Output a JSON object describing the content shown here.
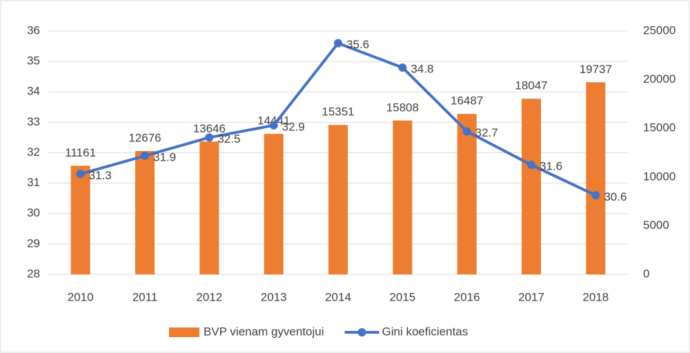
{
  "chart_data": {
    "type": "bar",
    "categories": [
      "2010",
      "2011",
      "2012",
      "2013",
      "2014",
      "2015",
      "2016",
      "2017",
      "2018"
    ],
    "series": [
      {
        "name": "BVP vienam gyventojui",
        "type": "bar",
        "axis": "y2",
        "color": "#ed7d31",
        "values": [
          11161,
          12676,
          13646,
          14441,
          15351,
          15808,
          16487,
          18047,
          19737
        ]
      },
      {
        "name": "Gini koeficientas",
        "type": "line",
        "color": "#4472c4",
        "values": [
          31.3,
          31.9,
          32.5,
          32.9,
          35.6,
          34.8,
          32.7,
          31.6,
          30.6
        ]
      }
    ],
    "ylim": [
      28,
      36
    ],
    "yticks": [
      28,
      29,
      30,
      31,
      32,
      33,
      34,
      35,
      36
    ],
    "y2lim": [
      0,
      25000
    ],
    "y2ticks": [
      0,
      5000,
      10000,
      15000,
      20000,
      25000
    ],
    "grid": true,
    "legend": "bottom"
  }
}
